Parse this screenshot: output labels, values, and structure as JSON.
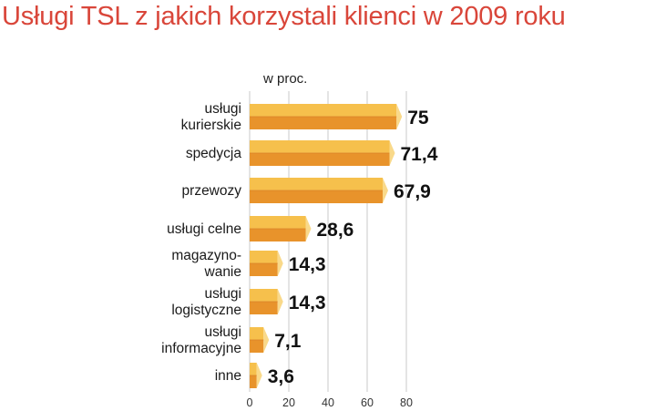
{
  "chart_data": {
    "type": "bar",
    "orientation": "horizontal",
    "title": "Usługi TSL z jakich korzystali klienci w 2009 roku",
    "unit_label": "w proc.",
    "categories": [
      [
        "usługi",
        "kurierskie"
      ],
      [
        "spedycja"
      ],
      [
        "przewozy"
      ],
      [
        "usługi celne"
      ],
      [
        "magazyno-",
        "wanie"
      ],
      [
        "usługi",
        "logistyczne"
      ],
      [
        "usługi",
        "informacyjne"
      ],
      [
        "inne"
      ]
    ],
    "values": [
      75,
      71.4,
      67.9,
      28.6,
      14.3,
      14.3,
      7.1,
      3.6
    ],
    "value_labels": [
      "75",
      "71,4",
      "67,9",
      "28,6",
      "14,3",
      "14,3",
      "7,1",
      "3,6"
    ],
    "xlim": [
      0,
      80
    ],
    "xticks": [
      "0",
      "20",
      "40",
      "60",
      "80"
    ],
    "grid": true,
    "colors": {
      "bar_top": "#f6c04c",
      "bar_bottom": "#e8932b",
      "bar_end": "#f9d98a",
      "grid": "#c9c9c9",
      "title": "#d9463a"
    }
  }
}
